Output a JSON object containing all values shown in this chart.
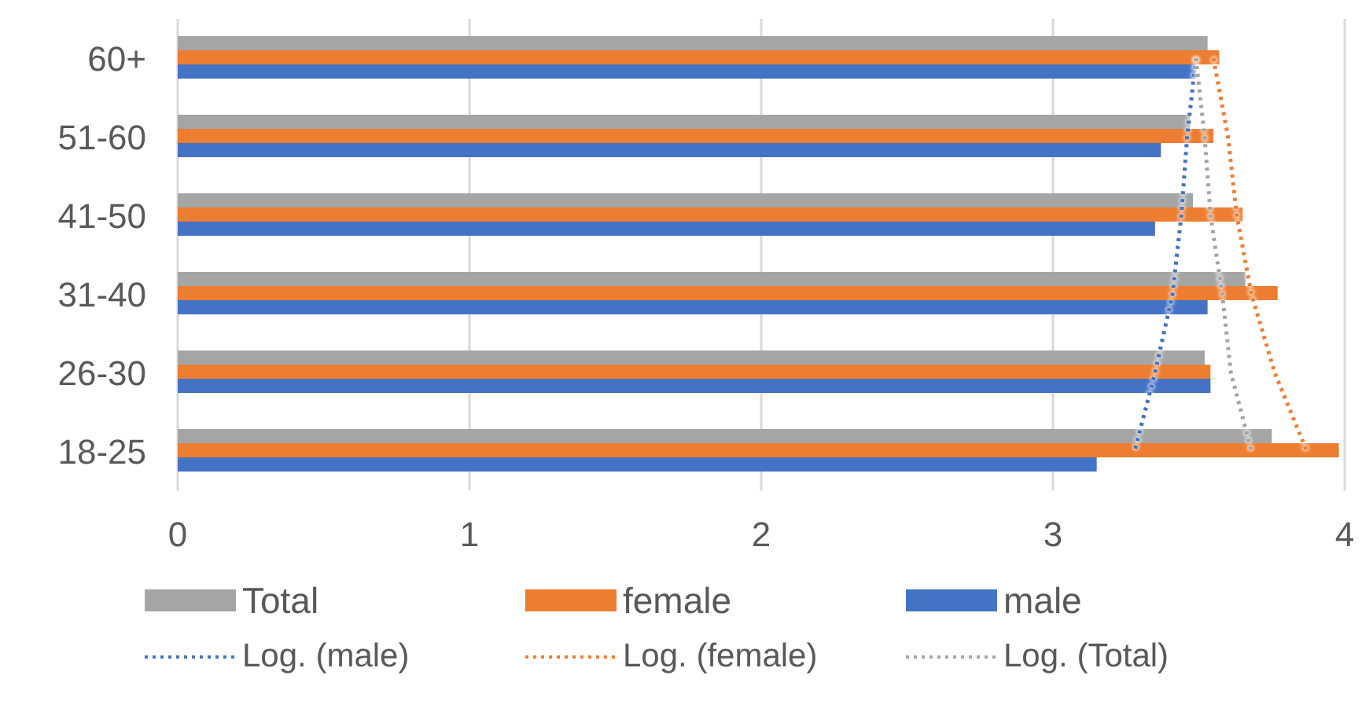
{
  "chart_data": {
    "type": "bar",
    "orientation": "horizontal",
    "categories": [
      "60+",
      "51-60",
      "41-50",
      "31-40",
      "26-30",
      "18-25"
    ],
    "series": [
      {
        "name": "Total",
        "color": "#a5a5a5",
        "values": [
          3.53,
          3.47,
          3.48,
          3.66,
          3.52,
          3.75
        ]
      },
      {
        "name": "female",
        "color": "#ed7d31",
        "values": [
          3.57,
          3.55,
          3.65,
          3.77,
          3.54,
          3.98
        ]
      },
      {
        "name": "male",
        "color": "#4472c4",
        "values": [
          3.49,
          3.37,
          3.35,
          3.53,
          3.54,
          3.15
        ]
      },
      {
        "name": "Log. (male)",
        "type": "line",
        "line_style": "dotted",
        "color": "#4472c4",
        "values": [
          3.49,
          3.46,
          3.44,
          3.41,
          3.35,
          3.28
        ]
      },
      {
        "name": "Log. (female)",
        "type": "line",
        "line_style": "dotted",
        "color": "#ed7d31",
        "values": [
          3.55,
          3.6,
          3.63,
          3.68,
          3.76,
          3.87
        ]
      },
      {
        "name": "Log. (Total)",
        "type": "line",
        "line_style": "dotted",
        "color": "#a5a5a5",
        "values": [
          3.49,
          3.52,
          3.54,
          3.58,
          3.61,
          3.68
        ]
      }
    ],
    "xlim": [
      0,
      4
    ],
    "xticks": [
      0,
      1,
      2,
      3,
      4
    ],
    "grid": "x",
    "legend": "bottom",
    "marker": "none"
  }
}
